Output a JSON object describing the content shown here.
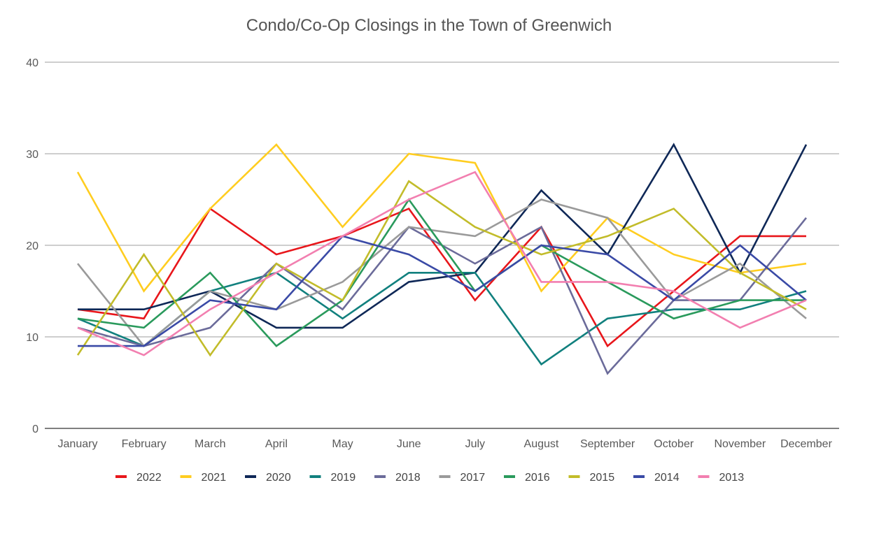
{
  "chart_data": {
    "type": "line",
    "title": "Condo/Co-Op Closings in the Town of Greenwich",
    "xlabel": "",
    "ylabel": "",
    "categories": [
      "January",
      "February",
      "March",
      "April",
      "May",
      "June",
      "July",
      "August",
      "September",
      "October",
      "November",
      "December"
    ],
    "ylim": [
      0,
      40
    ],
    "yticks": [
      0,
      10,
      20,
      30,
      40
    ],
    "grid": true,
    "legend_position": "bottom",
    "series": [
      {
        "name": "2022",
        "color": "#e8161b",
        "values": [
          13,
          12,
          24,
          19,
          21,
          24,
          14,
          22,
          9,
          15,
          21,
          21
        ]
      },
      {
        "name": "2021",
        "color": "#ffcd20",
        "values": [
          28,
          15,
          24,
          31,
          22,
          30,
          29,
          15,
          23,
          19,
          17,
          18
        ]
      },
      {
        "name": "2020",
        "color": "#0f2857",
        "values": [
          13,
          13,
          15,
          11,
          11,
          16,
          17,
          26,
          19,
          31,
          17,
          31
        ]
      },
      {
        "name": "2019",
        "color": "#11807e",
        "values": [
          12,
          9,
          15,
          17,
          12,
          17,
          17,
          7,
          12,
          13,
          13,
          15
        ]
      },
      {
        "name": "2018",
        "color": "#6b6b9a",
        "values": [
          11,
          9,
          11,
          18,
          13,
          22,
          18,
          22,
          6,
          14,
          14,
          23
        ]
      },
      {
        "name": "2017",
        "color": "#9a9a9a",
        "values": [
          18,
          9,
          15,
          13,
          16,
          22,
          21,
          25,
          23,
          14,
          18,
          12
        ]
      },
      {
        "name": "2016",
        "color": "#2a9a5c",
        "values": [
          12,
          11,
          17,
          9,
          14,
          25,
          15,
          20,
          16,
          12,
          14,
          14
        ]
      },
      {
        "name": "2015",
        "color": "#c2bc2a",
        "values": [
          8,
          19,
          8,
          18,
          14,
          27,
          22,
          19,
          21,
          24,
          17,
          13
        ]
      },
      {
        "name": "2014",
        "color": "#3a4aa6",
        "values": [
          9,
          9,
          14,
          13,
          21,
          19,
          15,
          20,
          19,
          14,
          20,
          14
        ]
      },
      {
        "name": "2013",
        "color": "#f27fb0",
        "values": [
          11,
          8,
          13,
          17,
          21,
          25,
          28,
          16,
          16,
          15,
          11,
          14
        ]
      }
    ]
  }
}
